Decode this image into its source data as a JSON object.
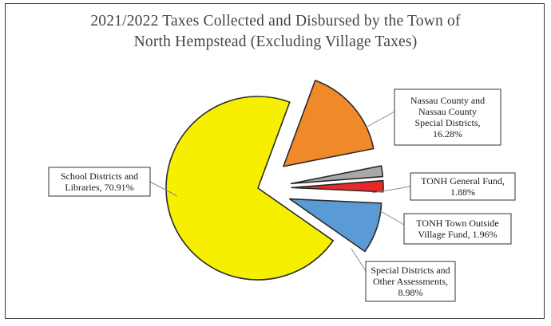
{
  "chart_data": {
    "type": "pie",
    "title_lines": [
      "2021/2022  Taxes Collected and Disbursed by the Town of",
      "North Hempstead (Excluding Village Taxes)"
    ],
    "slices": [
      {
        "name": "School Districts and Libraries",
        "value": 70.91,
        "color": "#f7ef00",
        "label_lines": [
          "School Districts and",
          "Libraries, 70.91%"
        ]
      },
      {
        "name": "Nassau County and Nassau County Special Districts",
        "value": 16.28,
        "color": "#f0892a",
        "label_lines": [
          "Nassau County and",
          "Nassau County",
          "Special Districts,",
          "16.28%"
        ]
      },
      {
        "name": "TONH General Fund",
        "value": 1.88,
        "color": "#a8a8a8",
        "label_lines": [
          "TONH General  Fund,",
          "1.88%"
        ]
      },
      {
        "name": "TONH Town Outside Village Fund",
        "value": 1.96,
        "color": "#e8282a",
        "label_lines": [
          "TONH Town Outside",
          "Village  Fund, 1.96%"
        ]
      },
      {
        "name": "Special Districts and Other Assessments",
        "value": 8.98,
        "color": "#5b9bd5",
        "label_lines": [
          "Special Districts and",
          "Other Assessments,",
          "8.98%"
        ]
      }
    ],
    "legend": "none"
  }
}
